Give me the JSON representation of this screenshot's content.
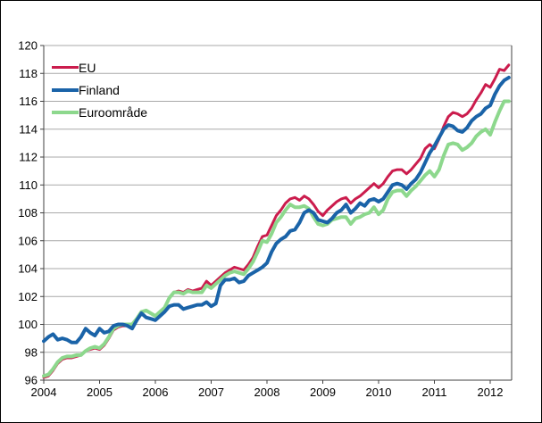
{
  "window": {
    "description": "Line chart, harmonized consumer price index 2005=100, no title shown",
    "background": "#ffffff",
    "border_color": "#000000"
  },
  "legend": {
    "position": "top-left-inside",
    "items": [
      {
        "label": "EU",
        "color": "#cb1c4d",
        "swatch": "line",
        "thickness": 3
      },
      {
        "label": "Finland",
        "color": "#1a63a8",
        "swatch": "line",
        "thickness": 4
      },
      {
        "label": "Euroområde",
        "color": "#8dd88d",
        "swatch": "line",
        "thickness": 4
      }
    ]
  },
  "axes": {
    "y_tick_labels": [
      "96",
      "98",
      "100",
      "102",
      "104",
      "106",
      "108",
      "110",
      "112",
      "114",
      "116",
      "118",
      "120"
    ],
    "x_tick_labels": [
      "2004",
      "2005",
      "2006",
      "2007",
      "2008",
      "2009",
      "2010",
      "2011",
      "2012"
    ],
    "grid_color": "#a9a9a9",
    "frame_color": "#404040",
    "text_color": "#000000"
  },
  "chart_data": {
    "type": "line",
    "title": "",
    "xlabel": "",
    "ylabel": "",
    "x_unit": "month",
    "x_start": "2004-01",
    "x_end": "2012-05",
    "points_per_series": 101,
    "ylim": [
      96,
      120
    ],
    "y_ticks": [
      96,
      98,
      100,
      102,
      104,
      106,
      108,
      110,
      112,
      114,
      116,
      118,
      120
    ],
    "x_ticks": [
      2004,
      2005,
      2006,
      2007,
      2008,
      2009,
      2010,
      2011,
      2012
    ],
    "grid": true,
    "legend_position": "top-left-inside",
    "series": [
      {
        "name": "EU",
        "color": "#cb1c4d",
        "width": 3,
        "values": [
          96.2,
          96.3,
          96.7,
          97.2,
          97.5,
          97.6,
          97.6,
          97.7,
          97.8,
          98.1,
          98.2,
          98.3,
          98.2,
          98.5,
          99.0,
          99.6,
          99.8,
          99.9,
          99.9,
          100.0,
          100.4,
          100.9,
          101.0,
          100.8,
          100.6,
          100.9,
          101.2,
          101.9,
          102.3,
          102.4,
          102.3,
          102.5,
          102.4,
          102.5,
          102.6,
          103.1,
          102.8,
          103.1,
          103.4,
          103.7,
          103.9,
          104.1,
          104.0,
          103.9,
          104.3,
          104.8,
          105.6,
          106.3,
          106.4,
          107.1,
          107.8,
          108.2,
          108.7,
          109.0,
          109.1,
          108.9,
          109.2,
          109.0,
          108.6,
          108.1,
          107.8,
          108.2,
          108.5,
          108.8,
          109.0,
          109.1,
          108.7,
          109.0,
          109.2,
          109.5,
          109.8,
          110.1,
          109.8,
          110.1,
          110.6,
          111.0,
          111.1,
          111.1,
          110.8,
          111.1,
          111.5,
          111.9,
          112.6,
          112.9,
          112.6,
          113.3,
          114.2,
          114.9,
          115.2,
          115.1,
          114.9,
          115.1,
          115.5,
          116.1,
          116.6,
          117.2,
          117.0,
          117.6,
          118.3,
          118.2,
          118.6
        ]
      },
      {
        "name": "Finland",
        "color": "#1a63a8",
        "width": 4,
        "values": [
          98.8,
          99.1,
          99.3,
          98.9,
          99.0,
          98.9,
          98.7,
          98.7,
          99.1,
          99.7,
          99.4,
          99.2,
          99.7,
          99.4,
          99.5,
          99.9,
          100.0,
          100.0,
          99.9,
          99.7,
          100.3,
          100.8,
          100.5,
          100.4,
          100.3,
          100.6,
          100.9,
          101.3,
          101.4,
          101.4,
          101.1,
          101.2,
          101.3,
          101.4,
          101.4,
          101.6,
          101.3,
          101.5,
          102.8,
          103.2,
          103.2,
          103.3,
          103.0,
          103.1,
          103.5,
          103.7,
          103.9,
          104.1,
          104.4,
          105.2,
          105.8,
          106.1,
          106.3,
          106.7,
          106.8,
          107.3,
          108.0,
          108.2,
          108.0,
          107.5,
          107.4,
          107.3,
          107.6,
          108.0,
          108.2,
          108.6,
          108.0,
          108.3,
          108.7,
          108.5,
          108.9,
          109.0,
          108.8,
          109.0,
          109.5,
          110.0,
          110.1,
          110.0,
          109.7,
          110.1,
          110.4,
          110.9,
          111.6,
          112.3,
          112.8,
          113.4,
          114.0,
          114.3,
          114.2,
          113.9,
          113.8,
          114.1,
          114.6,
          114.9,
          115.1,
          115.5,
          115.7,
          116.5,
          117.1,
          117.5,
          117.7
        ]
      },
      {
        "name": "Euroområde",
        "color": "#8dd88d",
        "width": 4,
        "values": [
          96.3,
          96.4,
          96.8,
          97.3,
          97.6,
          97.7,
          97.7,
          97.8,
          97.8,
          98.1,
          98.3,
          98.4,
          98.3,
          98.6,
          99.1,
          99.7,
          99.9,
          100.0,
          100.0,
          100.0,
          100.4,
          100.9,
          101.0,
          100.8,
          100.6,
          100.9,
          101.2,
          101.9,
          102.3,
          102.3,
          102.2,
          102.4,
          102.3,
          102.3,
          102.3,
          102.8,
          102.6,
          102.9,
          103.2,
          103.5,
          103.7,
          103.8,
          103.7,
          103.6,
          104.0,
          104.5,
          105.2,
          106.0,
          105.9,
          106.5,
          107.3,
          107.7,
          108.2,
          108.6,
          108.4,
          108.4,
          108.5,
          108.3,
          107.7,
          107.2,
          107.1,
          107.2,
          107.5,
          107.6,
          107.7,
          107.7,
          107.2,
          107.6,
          107.7,
          107.9,
          108.0,
          108.4,
          107.9,
          108.2,
          109.0,
          109.5,
          109.6,
          109.6,
          109.2,
          109.6,
          109.9,
          110.3,
          110.7,
          111.0,
          110.6,
          111.1,
          112.1,
          112.9,
          113.0,
          112.9,
          112.5,
          112.7,
          113.0,
          113.5,
          113.8,
          114.0,
          113.6,
          114.5,
          115.3,
          116.0,
          116.0
        ]
      }
    ]
  }
}
